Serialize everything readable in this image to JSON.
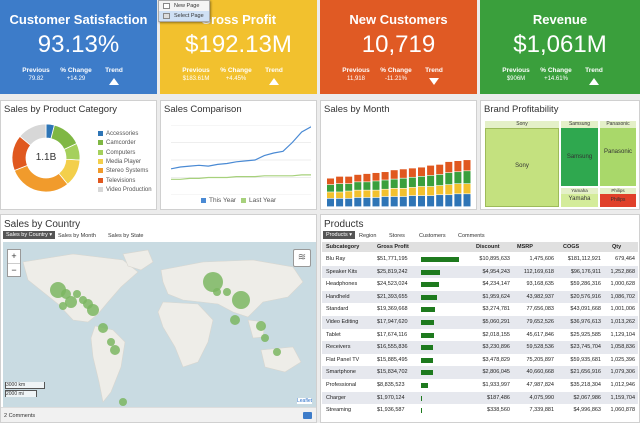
{
  "colors": {
    "blue": "#3d7cc9",
    "yellow": "#f2c12e",
    "orange": "#e05a24",
    "green": "#3a9f3c",
    "bar_green": "#1e7a1e",
    "map_bubble": "#7bb661"
  },
  "kpis": [
    {
      "title": "Customer Satisfaction",
      "value": "93.13%",
      "previous_label": "Previous",
      "previous": "79.82",
      "change_label": "% Change",
      "change": "+14.29",
      "trend_label": "Trend",
      "trend": "up"
    },
    {
      "title": "Gross Profit",
      "value": "$192.13M",
      "previous_label": "Previous",
      "previous": "$183.61M",
      "change_label": "% Change",
      "change": "+4.45%",
      "trend_label": "Trend",
      "trend": "up"
    },
    {
      "title": "New Customers",
      "value": "10,719",
      "previous_label": "Previous",
      "previous": "11,918",
      "change_label": "% Change",
      "change": "-11.21%",
      "trend_label": "Trend",
      "trend": "down"
    },
    {
      "title": "Revenue",
      "value": "$1,061M",
      "previous_label": "Previous",
      "previous": "$906M",
      "change_label": "% Change",
      "change": "+14.61%",
      "trend_label": "Trend",
      "trend": "up"
    }
  ],
  "context_menu": {
    "items": [
      "New Page",
      "Select Page"
    ]
  },
  "category_panel": {
    "title": "Sales by Product Category",
    "center_label": "1.1B",
    "legend": [
      "Accessories",
      "Camcorder",
      "Computers",
      "Media Player",
      "Stereo Systems",
      "Televisions",
      "Video Production"
    ],
    "legend_colors": [
      "#2e75b6",
      "#7fb744",
      "#a5d05c",
      "#f3cf4b",
      "#f19b2c",
      "#e0581f",
      "#d7d7d7"
    ],
    "slices": [
      4,
      14,
      8,
      13,
      30,
      17,
      14
    ]
  },
  "comparison_panel": {
    "title": "Sales Comparison",
    "legend": [
      "This Year",
      "Last Year"
    ],
    "legend_colors": [
      "#4a8ad4",
      "#a7d17c"
    ],
    "this_year": [
      30,
      32,
      33,
      34,
      33,
      35,
      36,
      38,
      39,
      40,
      45,
      48,
      50,
      60,
      72,
      78
    ],
    "last_year": [
      18,
      18,
      19,
      19,
      20,
      20,
      20,
      21,
      21,
      21,
      22,
      22,
      22,
      22,
      23,
      23
    ]
  },
  "month_panel": {
    "title": "Sales by Month",
    "colors": [
      "#2e75b6",
      "#f2c12e",
      "#3a9f3c",
      "#e0581f"
    ],
    "stacks": [
      [
        9,
        7,
        8,
        7
      ],
      [
        9,
        7,
        9,
        8
      ],
      [
        9,
        8,
        8,
        8
      ],
      [
        10,
        8,
        9,
        8
      ],
      [
        10,
        8,
        9,
        9
      ],
      [
        10,
        8,
        10,
        9
      ],
      [
        11,
        8,
        10,
        9
      ],
      [
        11,
        9,
        10,
        10
      ],
      [
        11,
        9,
        11,
        10
      ],
      [
        12,
        9,
        11,
        10
      ],
      [
        12,
        10,
        11,
        10
      ],
      [
        12,
        10,
        12,
        11
      ],
      [
        13,
        10,
        12,
        11
      ],
      [
        13,
        11,
        13,
        12
      ],
      [
        14,
        11,
        13,
        12
      ],
      [
        14,
        11,
        14,
        12
      ]
    ]
  },
  "brand_panel": {
    "title": "Brand Profitability",
    "brands": [
      {
        "name": "Sony",
        "color": "#c4e17f"
      },
      {
        "name": "Samsung",
        "color": "#2fa84f"
      },
      {
        "name": "Panasonic",
        "color": "#a9d86a"
      },
      {
        "name": "Yamaha",
        "color": "#d4ec9a"
      },
      {
        "name": "Philips",
        "color": "#e0402a"
      }
    ]
  },
  "country_panel": {
    "title": "Sales by Country",
    "tabs": [
      "Sales by Country",
      "Sales by Month",
      "Sales by State"
    ],
    "scale_km": "3000 km",
    "scale_mi": "2000 mi",
    "attribution": "Leaflet",
    "comments": "2 Comments",
    "bubbles": [
      8,
      5,
      6,
      4,
      4,
      4,
      5,
      6,
      5,
      4,
      5,
      10,
      4,
      4,
      9,
      5,
      5,
      4,
      4,
      4
    ]
  },
  "products_panel": {
    "title": "Products",
    "tabs": [
      "Products",
      "Region",
      "Stores",
      "Customers",
      "Comments"
    ],
    "columns": [
      "Subcategory",
      "Gross Profit",
      "Discount",
      "MSRP",
      "COGS",
      "Qty"
    ],
    "rows": [
      {
        "name": "Blu Ray",
        "profit": "$51,771,195",
        "profit_value": 51771195,
        "discount": "$10,895,633",
        "msrp": "1,475,606",
        "cogs": "$181,112,921",
        "qty": "679,464"
      },
      {
        "name": "Speaker Kits",
        "profit": "$25,819,242",
        "profit_value": 25819242,
        "discount": "$4,954,243",
        "msrp": "112,169,618",
        "cogs": "$96,176,911",
        "qty": "1,252,868"
      },
      {
        "name": "Headphones",
        "profit": "$24,523,024",
        "profit_value": 24523024,
        "discount": "$4,234,147",
        "msrp": "93,168,635",
        "cogs": "$59,286,316",
        "qty": "1,000,628"
      },
      {
        "name": "Handheld",
        "profit": "$21,393,655",
        "profit_value": 21393655,
        "discount": "$1,959,624",
        "msrp": "43,982,937",
        "cogs": "$20,576,916",
        "qty": "1,086,702"
      },
      {
        "name": "Standard",
        "profit": "$19,369,668",
        "profit_value": 19369668,
        "discount": "$3,274,781",
        "msrp": "77,656,083",
        "cogs": "$43,091,668",
        "qty": "1,001,006"
      },
      {
        "name": "Video Editing",
        "profit": "$17,947,620",
        "profit_value": 17947620,
        "discount": "$5,060,291",
        "msrp": "79,652,526",
        "cogs": "$36,976,613",
        "qty": "1,013,262"
      },
      {
        "name": "Tablet",
        "profit": "$17,674,116",
        "profit_value": 17674116,
        "discount": "$2,018,155",
        "msrp": "45,617,846",
        "cogs": "$25,925,585",
        "qty": "1,129,104"
      },
      {
        "name": "Receivers",
        "profit": "$16,555,836",
        "profit_value": 16555836,
        "discount": "$3,230,896",
        "msrp": "59,528,536",
        "cogs": "$23,745,704",
        "qty": "1,058,836"
      },
      {
        "name": "Flat Panel TV",
        "profit": "$15,885,495",
        "profit_value": 15885495,
        "discount": "$3,478,829",
        "msrp": "75,205,897",
        "cogs": "$59,935,681",
        "qty": "1,025,396"
      },
      {
        "name": "Smartphone",
        "profit": "$15,834,702",
        "profit_value": 15834702,
        "discount": "$2,806,045",
        "msrp": "40,660,668",
        "cogs": "$21,656,916",
        "qty": "1,079,306"
      },
      {
        "name": "Professional",
        "profit": "$8,835,523",
        "profit_value": 8835523,
        "discount": "$1,933,997",
        "msrp": "47,987,824",
        "cogs": "$35,218,304",
        "qty": "1,012,946"
      },
      {
        "name": "Charger",
        "profit": "$1,970,124",
        "profit_value": 1970124,
        "discount": "$187,486",
        "msrp": "4,075,990",
        "cogs": "$2,067,986",
        "qty": "1,159,704"
      },
      {
        "name": "Streaming",
        "profit": "$1,936,587",
        "profit_value": 1936587,
        "discount": "$338,560",
        "msrp": "7,339,881",
        "cogs": "$4,996,863",
        "qty": "1,060,878"
      }
    ]
  }
}
